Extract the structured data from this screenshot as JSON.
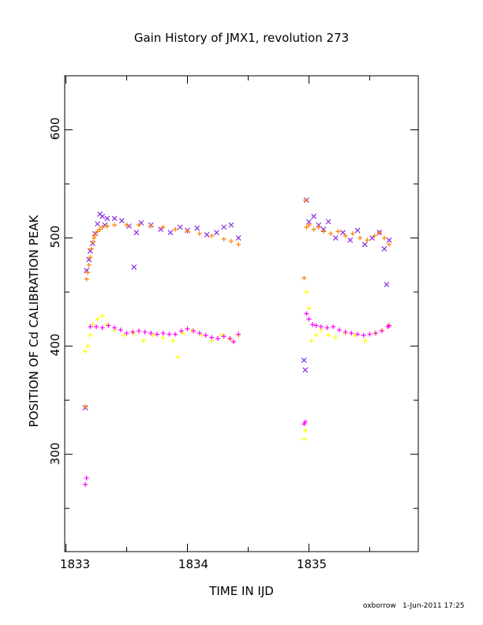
{
  "chart_data": {
    "type": "scatter",
    "title": "Gain History of JMX1, revolution 273",
    "xlabel": "TIME IN IJD",
    "ylabel": "POSITION OF Cd CALIBRATION PEAK",
    "xlim": [
      1832.99,
      1835.9
    ],
    "ylim": [
      210,
      650
    ],
    "x_ticks": [
      "1833",
      "1834",
      "1835"
    ],
    "y_ticks": [
      "300",
      "400",
      "500",
      "600"
    ],
    "grid": false,
    "legend": "none",
    "series": [
      {
        "marker": "x",
        "color": "#8a2be2",
        "segments": [
          {
            "x": [
              1833.16,
              1833.17,
              1833.19,
              1833.2,
              1833.22,
              1833.24,
              1833.26,
              1833.28,
              1833.3,
              1833.32,
              1833.34,
              1833.4,
              1833.46,
              1833.52,
              1833.56,
              1833.58,
              1833.62,
              1833.7,
              1833.78,
              1833.86,
              1833.94,
              1834.0,
              1834.08,
              1834.16,
              1834.24,
              1834.3,
              1834.36,
              1834.42
            ],
            "y": [
              343,
              470,
              480,
              488,
              495,
              504,
              513,
              522,
              520,
              512,
              518,
              518,
              516,
              511,
              473,
              505,
              514,
              512,
              508,
              505,
              510,
              507,
              509,
              503,
              505,
              510,
              512,
              500
            ]
          },
          {
            "x": [
              1834.96,
              1834.97,
              1834.98,
              1835.0,
              1835.04,
              1835.08,
              1835.12,
              1835.16,
              1835.22,
              1835.28,
              1835.34,
              1835.4,
              1835.46,
              1835.52,
              1835.58,
              1835.62,
              1835.64,
              1835.66
            ],
            "y": [
              387,
              378,
              535,
              515,
              520,
              512,
              508,
              515,
              500,
              505,
              498,
              507,
              494,
              500,
              505,
              490,
              457,
              498
            ]
          }
        ]
      },
      {
        "marker": "+",
        "color": "#ffff00",
        "segments": [
          {
            "x": [
              1833.16,
              1833.18,
              1833.2,
              1833.22,
              1833.26,
              1833.3,
              1833.34,
              1833.4,
              1833.48,
              1833.56,
              1833.64,
              1833.72,
              1833.8,
              1833.88,
              1833.92,
              1833.96,
              1834.04,
              1834.12,
              1834.2,
              1834.28,
              1834.36,
              1834.42
            ],
            "y": [
              395,
              400,
              410,
              420,
              425,
              428,
              420,
              415,
              410,
              412,
              405,
              410,
              408,
              405,
              390,
              412,
              415,
              410,
              405,
              410,
              406,
              410
            ]
          },
          {
            "x": [
              1834.96,
              1834.97,
              1834.98,
              1835.0,
              1835.02,
              1835.06,
              1835.1,
              1835.16,
              1835.22,
              1835.3,
              1835.38,
              1835.46,
              1835.54,
              1835.6,
              1835.66
            ],
            "y": [
              314,
              322,
              450,
              435,
              405,
              410,
              415,
              410,
              408,
              412,
              410,
              405,
              412,
              415,
              420
            ]
          }
        ]
      },
      {
        "marker": "+",
        "color": "#ff00ff",
        "segments": [
          {
            "x": [
              1833.16,
              1833.17,
              1833.2,
              1833.25,
              1833.3,
              1833.35,
              1833.4,
              1833.45,
              1833.5,
              1833.55,
              1833.6,
              1833.65,
              1833.7,
              1833.75,
              1833.8,
              1833.85,
              1833.9,
              1833.95,
              1834.0,
              1834.05,
              1834.1,
              1834.15,
              1834.2,
              1834.25,
              1834.3,
              1834.35,
              1834.38,
              1834.42
            ],
            "y": [
              272,
              278,
              418,
              418,
              417,
              419,
              417,
              415,
              412,
              413,
              414,
              413,
              412,
              411,
              412,
              411,
              411,
              414,
              416,
              414,
              412,
              410,
              408,
              407,
              409,
              407,
              404,
              411
            ]
          },
          {
            "x": [
              1834.96,
              1834.97,
              1834.98,
              1835.0,
              1835.03,
              1835.06,
              1835.1,
              1835.15,
              1835.2,
              1835.25,
              1835.3,
              1835.35,
              1835.4,
              1835.45,
              1835.5,
              1835.55,
              1835.6,
              1835.65,
              1835.66
            ],
            "y": [
              328,
              330,
              430,
              425,
              420,
              419,
              418,
              417,
              418,
              415,
              413,
              412,
              411,
              410,
              411,
              412,
              414,
              418,
              419
            ]
          }
        ]
      },
      {
        "marker": "+",
        "color": "#ff7f00",
        "segments": [
          {
            "x": [
              1833.16,
              1833.17,
              1833.18,
              1833.19,
              1833.2,
              1833.21,
              1833.22,
              1833.23,
              1833.24,
              1833.26,
              1833.28,
              1833.3,
              1833.34,
              1833.4,
              1833.5,
              1833.6,
              1833.7,
              1833.8,
              1833.9,
              1834.0,
              1834.1,
              1834.2,
              1834.3,
              1834.36,
              1834.42
            ],
            "y": [
              344,
              462,
              468,
              475,
              482,
              490,
              496,
              500,
              503,
              506,
              508,
              510,
              511,
              512,
              512,
              512,
              511,
              510,
              508,
              506,
              504,
              502,
              499,
              497,
              494
            ]
          },
          {
            "x": [
              1834.96,
              1834.97,
              1834.98,
              1835.0,
              1835.04,
              1835.08,
              1835.12,
              1835.18,
              1835.24,
              1835.3,
              1835.36,
              1835.42,
              1835.48,
              1835.54,
              1835.58,
              1835.62,
              1835.66
            ],
            "y": [
              463,
              535,
              510,
              512,
              508,
              510,
              506,
              504,
              506,
              502,
              504,
              500,
              498,
              502,
              505,
              500,
              494
            ]
          }
        ]
      }
    ]
  },
  "footer": {
    "user": "oxborrow",
    "timestamp": "1-Jun-2011 17:25"
  }
}
